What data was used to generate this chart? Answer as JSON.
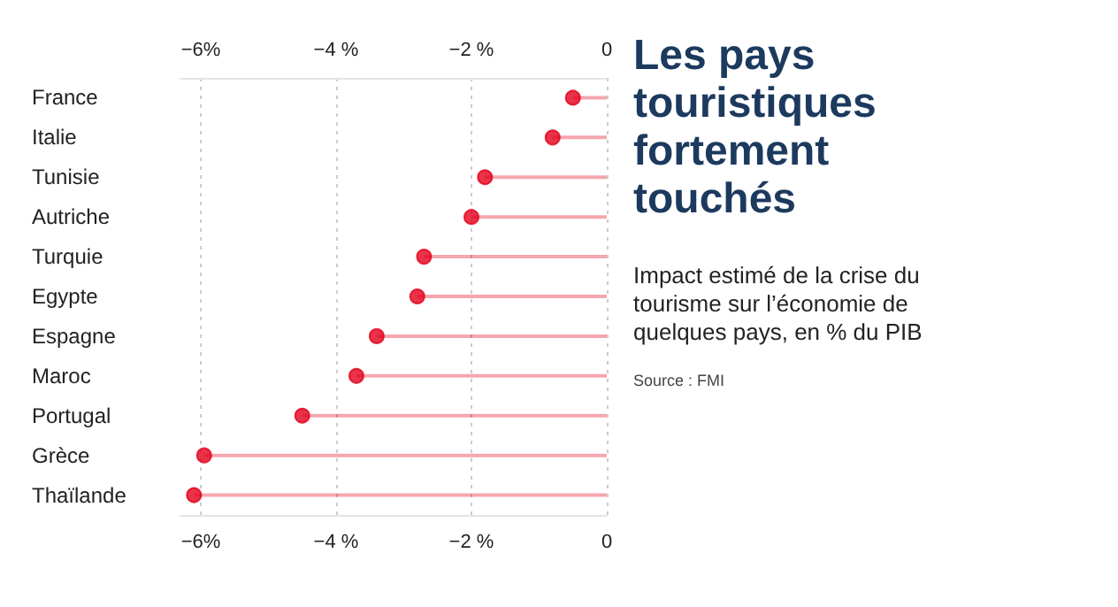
{
  "chart_data": {
    "type": "lollipop",
    "orientation": "horizontal",
    "title": "Les pays touristiques fortement touchés",
    "subtitle": "Impact estimé de la crise du tourisme sur l’économie de quelques pays, en % du PIB",
    "annotations": [
      "Source : FMI"
    ],
    "categories": [
      "France",
      "Italie",
      "Tunisie",
      "Autriche",
      "Turquie",
      "Egypte",
      "Espagne",
      "Maroc",
      "Portugal",
      "Grèce",
      "Thaïlande"
    ],
    "series": [
      {
        "color": "#e3001b",
        "values": [
          -0.5,
          -0.8,
          -1.8,
          -2.0,
          -2.7,
          -2.8,
          -3.4,
          -3.7,
          -4.5,
          -5.95,
          -6.1
        ]
      }
    ],
    "xlim": [
      -6.3,
      0
    ],
    "xticks": [
      {
        "value": -6,
        "label": "−6%"
      },
      {
        "value": -4,
        "label": "−4 %"
      },
      {
        "value": -2,
        "label": "−2 %"
      },
      {
        "value": 0,
        "label": "0"
      }
    ],
    "x2lim": [
      -6.3,
      0
    ],
    "x2ticks": [
      {
        "value": -6,
        "label": "−6%"
      },
      {
        "value": -4,
        "label": "−4 %"
      },
      {
        "value": -2,
        "label": "−2 %"
      },
      {
        "value": 0,
        "label": "0"
      }
    ],
    "grid": "x",
    "marker": "circle"
  }
}
